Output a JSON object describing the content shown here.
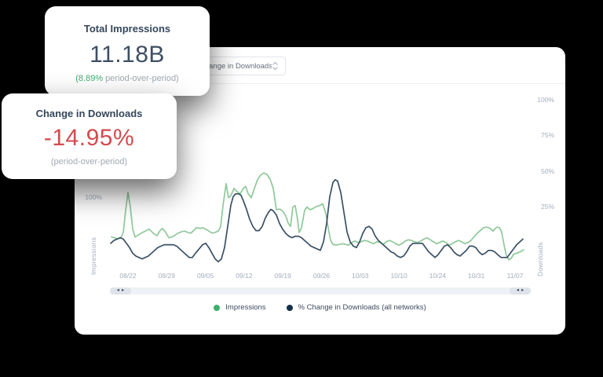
{
  "cards": {
    "impressions": {
      "title": "Total Impressions",
      "value": "11.18B",
      "delta_green": "(8.89%",
      "delta_gray": " period-over-period)"
    },
    "downloads": {
      "title": "Change in Downloads",
      "value": "-14.95%",
      "subtitle": "(period-over-period)"
    }
  },
  "panel": {
    "dropdown": {
      "value": "Change in Downloads",
      "chevron_icon": "up-down-chevron"
    },
    "scrollbar": {
      "arrows": [
        "◂",
        "▸"
      ]
    }
  },
  "colors": {
    "green_accent": "#3aaf6c",
    "green_line": "#8fc89a",
    "navy_dot": "#152f4a",
    "navy_line": "#3a5066",
    "red_value": "#d24b4e",
    "text_dark": "#36465c",
    "text_gray": "#9fa9b3",
    "axis_gray": "#a3adbc"
  },
  "chart_data": {
    "type": "line",
    "title": "",
    "x_tick_labels": [
      "08/22",
      "08/29",
      "09/05",
      "09/12",
      "09/19",
      "09/26",
      "10/03",
      "10/10",
      "10/24",
      "10/31",
      "11/07"
    ],
    "left_axis": {
      "label": "Impressions",
      "tick_labels": [
        "100%"
      ],
      "unit": "%"
    },
    "right_axis": {
      "label": "Downloads",
      "tick_labels": [
        "100%",
        "75%",
        "50%",
        "25%"
      ],
      "unit": "%"
    },
    "grid": false,
    "legend_position": "bottom-center",
    "legend": [
      {
        "label": "Impressions",
        "color": "#3aaf6c"
      },
      {
        "label": "% Change in Downloads (all networks)",
        "color": "#152f4a"
      }
    ],
    "scale": {
      "left": {
        "y_of_0pct": 223,
        "y_of_100pct": 138
      },
      "right": {
        "y_of_0pct": 196,
        "y_of_100pct": 16
      }
    },
    "x_tick_layout": {
      "first_center": 68,
      "spacing": 49.3
    },
    "right_tick_tops": [
      62,
      107,
      153,
      198
    ],
    "series": [
      {
        "name": "Impressions",
        "axis": "left",
        "color": "#8fc89a",
        "points": [
          [
            2,
            39
          ],
          [
            6,
            38
          ],
          [
            10,
            36
          ],
          [
            14,
            38
          ],
          [
            17,
            46
          ],
          [
            20,
            79
          ],
          [
            23,
            106
          ],
          [
            26,
            84
          ],
          [
            29,
            51
          ],
          [
            32,
            39
          ],
          [
            36,
            42
          ],
          [
            40,
            45
          ],
          [
            45,
            48
          ],
          [
            50,
            51
          ],
          [
            55,
            45
          ],
          [
            60,
            41
          ],
          [
            64,
            49
          ],
          [
            67,
            52
          ],
          [
            71,
            46
          ],
          [
            75,
            38
          ],
          [
            79,
            39
          ],
          [
            83,
            42
          ],
          [
            87,
            45
          ],
          [
            91,
            47
          ],
          [
            95,
            48
          ],
          [
            99,
            46
          ],
          [
            103,
            45
          ],
          [
            107,
            49
          ],
          [
            110,
            53
          ],
          [
            115,
            52
          ],
          [
            118,
            53
          ],
          [
            122,
            51
          ],
          [
            126,
            48
          ],
          [
            130,
            45
          ],
          [
            134,
            46
          ],
          [
            138,
            48
          ],
          [
            141,
            55
          ],
          [
            144,
            86
          ],
          [
            148,
            119
          ],
          [
            151,
            98
          ],
          [
            154,
            101
          ],
          [
            158,
            112
          ],
          [
            162,
            107
          ],
          [
            166,
            104
          ],
          [
            170,
            112
          ],
          [
            173,
            115
          ],
          [
            176,
            104
          ],
          [
            180,
            98
          ],
          [
            184,
            112
          ],
          [
            188,
            125
          ],
          [
            192,
            132
          ],
          [
            196,
            135
          ],
          [
            200,
            133
          ],
          [
            204,
            126
          ],
          [
            208,
            112
          ],
          [
            212,
            80
          ],
          [
            216,
            81
          ],
          [
            220,
            78
          ],
          [
            224,
            71
          ],
          [
            227,
            60
          ],
          [
            230,
            55
          ],
          [
            233,
            84
          ],
          [
            236,
            86
          ],
          [
            239,
            65
          ],
          [
            241,
            46
          ],
          [
            244,
            53
          ],
          [
            248,
            79
          ],
          [
            251,
            84
          ],
          [
            255,
            80
          ],
          [
            259,
            82
          ],
          [
            263,
            85
          ],
          [
            267,
            86
          ],
          [
            271,
            89
          ],
          [
            275,
            74
          ],
          [
            278,
            53
          ],
          [
            281,
            34
          ],
          [
            284,
            28
          ],
          [
            288,
            27
          ],
          [
            292,
            28
          ],
          [
            296,
            29
          ],
          [
            300,
            28
          ],
          [
            304,
            27
          ],
          [
            308,
            31
          ],
          [
            312,
            33
          ],
          [
            316,
            31
          ],
          [
            320,
            32
          ],
          [
            324,
            34
          ],
          [
            328,
            33
          ],
          [
            332,
            31
          ],
          [
            336,
            29
          ],
          [
            340,
            32
          ],
          [
            344,
            31
          ],
          [
            348,
            28
          ],
          [
            352,
            32
          ],
          [
            356,
            34
          ],
          [
            360,
            32
          ],
          [
            364,
            29
          ],
          [
            368,
            27
          ],
          [
            372,
            29
          ],
          [
            376,
            33
          ],
          [
            380,
            35
          ],
          [
            384,
            34
          ],
          [
            388,
            32
          ],
          [
            392,
            31
          ],
          [
            396,
            33
          ],
          [
            400,
            36
          ],
          [
            404,
            38
          ],
          [
            408,
            35
          ],
          [
            412,
            32
          ],
          [
            416,
            29
          ],
          [
            420,
            31
          ],
          [
            424,
            33
          ],
          [
            428,
            31
          ],
          [
            432,
            27
          ],
          [
            436,
            29
          ],
          [
            440,
            32
          ],
          [
            444,
            34
          ],
          [
            448,
            32
          ],
          [
            452,
            29
          ],
          [
            456,
            31
          ],
          [
            460,
            34
          ],
          [
            464,
            40
          ],
          [
            468,
            45
          ],
          [
            472,
            49
          ],
          [
            476,
            53
          ],
          [
            480,
            54
          ],
          [
            484,
            52
          ],
          [
            488,
            48
          ],
          [
            490,
            51
          ],
          [
            493,
            54
          ],
          [
            496,
            53
          ],
          [
            499,
            46
          ],
          [
            502,
            27
          ],
          [
            505,
            11
          ],
          [
            508,
            5
          ],
          [
            511,
            7
          ],
          [
            514,
            13
          ],
          [
            518,
            15
          ],
          [
            521,
            16
          ],
          [
            524,
            18
          ],
          [
            527,
            20
          ]
        ]
      },
      {
        "name": "% Change in Downloads (all networks)",
        "axis": "right",
        "color": "#3a5066",
        "points": [
          [
            1,
            -1
          ],
          [
            5,
            1
          ],
          [
            9,
            2
          ],
          [
            13,
            3
          ],
          [
            17,
            2
          ],
          [
            21,
            -1
          ],
          [
            25,
            -4
          ],
          [
            29,
            -8
          ],
          [
            33,
            -10
          ],
          [
            37,
            -11
          ],
          [
            41,
            -12
          ],
          [
            45,
            -11
          ],
          [
            49,
            -10
          ],
          [
            53,
            -8
          ],
          [
            57,
            -6
          ],
          [
            61,
            -4
          ],
          [
            65,
            -3
          ],
          [
            69,
            -2
          ],
          [
            73,
            -2
          ],
          [
            77,
            -2
          ],
          [
            81,
            -2
          ],
          [
            85,
            -3
          ],
          [
            89,
            -5
          ],
          [
            93,
            -7
          ],
          [
            97,
            -9
          ],
          [
            101,
            -11
          ],
          [
            105,
            -11
          ],
          [
            109,
            -8
          ],
          [
            112,
            -6
          ],
          [
            115,
            -4
          ],
          [
            118,
            -2
          ],
          [
            122,
            -1
          ],
          [
            126,
            -4
          ],
          [
            130,
            -8
          ],
          [
            134,
            -12
          ],
          [
            138,
            -14
          ],
          [
            142,
            -12
          ],
          [
            146,
            -4
          ],
          [
            150,
            11
          ],
          [
            154,
            26
          ],
          [
            157,
            32
          ],
          [
            160,
            34
          ],
          [
            164,
            34
          ],
          [
            167,
            33
          ],
          [
            170,
            29
          ],
          [
            174,
            23
          ],
          [
            178,
            16
          ],
          [
            182,
            11
          ],
          [
            186,
            8
          ],
          [
            190,
            8
          ],
          [
            194,
            11
          ],
          [
            198,
            17
          ],
          [
            202,
            21
          ],
          [
            205,
            23
          ],
          [
            208,
            22
          ],
          [
            212,
            19
          ],
          [
            216,
            13
          ],
          [
            220,
            9
          ],
          [
            224,
            6
          ],
          [
            228,
            4
          ],
          [
            232,
            3
          ],
          [
            236,
            4
          ],
          [
            240,
            4
          ],
          [
            244,
            3
          ],
          [
            248,
            1
          ],
          [
            252,
            -1
          ],
          [
            256,
            -3
          ],
          [
            260,
            -4
          ],
          [
            264,
            -5
          ],
          [
            268,
            -6
          ],
          [
            272,
            0
          ],
          [
            276,
            13
          ],
          [
            280,
            32
          ],
          [
            284,
            42
          ],
          [
            287,
            44
          ],
          [
            290,
            43
          ],
          [
            294,
            35
          ],
          [
            298,
            21
          ],
          [
            302,
            7
          ],
          [
            306,
            0
          ],
          [
            310,
            -3
          ],
          [
            314,
            -4
          ],
          [
            318,
            0
          ],
          [
            322,
            6
          ],
          [
            326,
            10
          ],
          [
            330,
            11
          ],
          [
            334,
            9
          ],
          [
            338,
            4
          ],
          [
            342,
            1
          ],
          [
            346,
            -1
          ],
          [
            350,
            -3
          ],
          [
            354,
            -5
          ],
          [
            358,
            -7
          ],
          [
            362,
            -8
          ],
          [
            366,
            -10
          ],
          [
            370,
            -11
          ],
          [
            374,
            -10
          ],
          [
            378,
            -7
          ],
          [
            382,
            -3
          ],
          [
            386,
            -1
          ],
          [
            390,
            -1
          ],
          [
            394,
            -1
          ],
          [
            398,
            -1
          ],
          [
            402,
            -4
          ],
          [
            406,
            -7
          ],
          [
            410,
            -9
          ],
          [
            414,
            -11
          ],
          [
            418,
            -9
          ],
          [
            422,
            -6
          ],
          [
            426,
            -3
          ],
          [
            430,
            -2
          ],
          [
            434,
            -4
          ],
          [
            438,
            -7
          ],
          [
            442,
            -9
          ],
          [
            446,
            -10
          ],
          [
            450,
            -8
          ],
          [
            454,
            -6
          ],
          [
            458,
            -3
          ],
          [
            462,
            -3
          ],
          [
            466,
            -4
          ],
          [
            470,
            -7
          ],
          [
            474,
            -9
          ],
          [
            478,
            -8
          ],
          [
            482,
            -6
          ],
          [
            486,
            -6
          ],
          [
            490,
            -7
          ],
          [
            494,
            -9
          ],
          [
            498,
            -11
          ],
          [
            502,
            -11
          ],
          [
            506,
            -11
          ],
          [
            510,
            -8
          ],
          [
            514,
            -5
          ],
          [
            518,
            -2
          ],
          [
            522,
            0
          ],
          [
            526,
            2
          ]
        ]
      }
    ]
  }
}
